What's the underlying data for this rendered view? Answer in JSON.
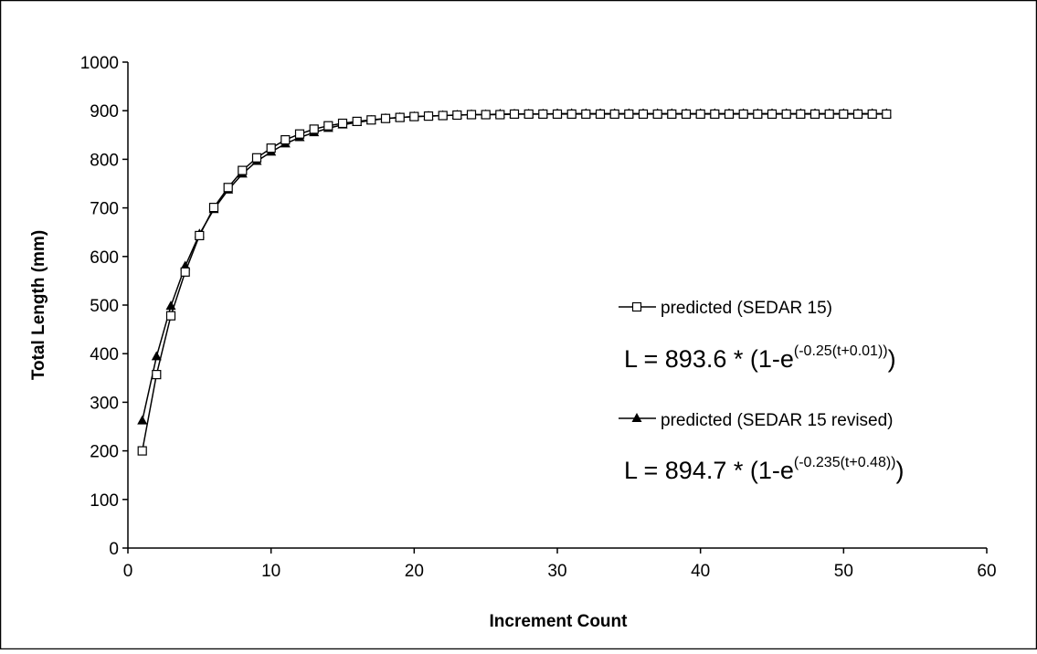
{
  "chart_data": {
    "type": "line",
    "xlabel": "Increment Count",
    "ylabel": "Total Length (mm)",
    "xlim": [
      0,
      60
    ],
    "ylim": [
      0,
      1000
    ],
    "xticks": [
      "0",
      "10",
      "20",
      "30",
      "40",
      "50",
      "60"
    ],
    "yticks": [
      "0",
      "100",
      "200",
      "300",
      "400",
      "500",
      "600",
      "700",
      "800",
      "900",
      "1000"
    ],
    "grid": false,
    "legend_position": "right",
    "series": [
      {
        "name": "predicted (SEDAR 15)",
        "marker": "open-square",
        "x": [
          1,
          2,
          3,
          4,
          5,
          6,
          7,
          8,
          9,
          10,
          11,
          12,
          13,
          14,
          15,
          16,
          17,
          18,
          19,
          20,
          21,
          22,
          23,
          24,
          25,
          26,
          27,
          28,
          29,
          30,
          31,
          32,
          33,
          34,
          35,
          36,
          37,
          38,
          39,
          40,
          41,
          42,
          43,
          44,
          45,
          46,
          47,
          48,
          49,
          50,
          51,
          52,
          53
        ],
        "y": [
          200,
          357,
          478,
          568,
          643,
          701,
          742,
          777,
          803,
          823,
          840,
          852,
          862,
          869,
          874,
          878,
          881,
          884,
          886,
          888,
          889,
          890,
          891,
          892,
          892,
          892,
          893,
          893,
          893,
          893,
          893,
          893,
          893,
          893,
          893,
          893,
          893,
          893,
          893,
          893,
          893,
          893,
          893,
          893,
          893,
          893,
          893,
          893,
          893,
          893,
          893,
          893,
          893
        ]
      },
      {
        "name": "predicted (SEDAR 15 revised)",
        "marker": "filled-triangle",
        "x": [
          1,
          2,
          3,
          4,
          5,
          6,
          7,
          8,
          9,
          10,
          11,
          12,
          13,
          14,
          15,
          16,
          17,
          18,
          19,
          20,
          21,
          22,
          23,
          24,
          25,
          26,
          27,
          28,
          29,
          30,
          31,
          32,
          33,
          34,
          35,
          36,
          37,
          38,
          39,
          40,
          41,
          42,
          43,
          44,
          45,
          46,
          47,
          48,
          49,
          50,
          51,
          52,
          53
        ],
        "y": [
          262,
          394,
          498,
          580,
          646,
          697,
          737,
          770,
          796,
          815,
          832,
          845,
          855,
          864,
          871,
          876,
          880,
          884,
          886,
          888,
          889,
          890,
          891,
          892,
          892,
          893,
          893,
          893,
          893,
          894,
          894,
          894,
          894,
          894,
          894,
          894,
          894,
          894,
          894,
          894,
          894,
          894,
          894,
          894,
          894,
          894,
          894,
          894,
          894,
          894,
          894,
          894,
          894
        ]
      }
    ],
    "annotations": [
      {
        "base": "L = 893.6 * (1-e",
        "sup": "(-0.25(t+0.01))",
        "tail": ")"
      },
      {
        "base": "L = 894.7 * (1-e",
        "sup": "(-0.235(t+0.48))",
        "tail": ")"
      }
    ]
  }
}
